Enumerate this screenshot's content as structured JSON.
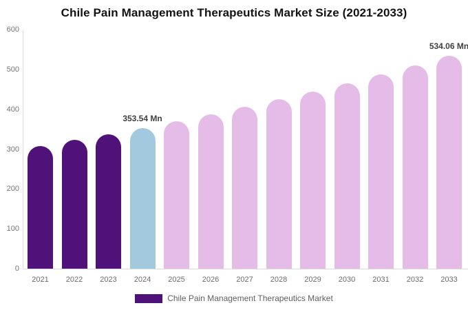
{
  "chart_data": {
    "type": "bar",
    "title": "Chile Pain Management Therapeutics Market Size (2021-2033)",
    "categories": [
      "2021",
      "2022",
      "2023",
      "2024",
      "2025",
      "2026",
      "2027",
      "2028",
      "2029",
      "2030",
      "2031",
      "2032",
      "2033"
    ],
    "values": [
      308.0,
      322.5,
      337.7,
      353.54,
      370.2,
      387.6,
      405.8,
      424.9,
      444.8,
      465.7,
      487.6,
      510.5,
      534.06
    ],
    "unit": "Mn",
    "xlabel": "",
    "ylabel": "",
    "ylim": [
      0,
      600
    ],
    "yticks": [
      0,
      100,
      200,
      300,
      400,
      500,
      600
    ],
    "grid": "off",
    "legend_position": "bottom",
    "bar_colors": [
      "#4F1279",
      "#4F1279",
      "#4F1279",
      "#A3C9DE",
      "#E5BCE7",
      "#E5BCE7",
      "#E5BCE7",
      "#E5BCE7",
      "#E5BCE7",
      "#E5BCE7",
      "#E5BCE7",
      "#E5BCE7",
      "#E5BCE7"
    ],
    "data_labels": [
      {
        "category": "2024",
        "text": "353.54 Mn"
      },
      {
        "category": "2033",
        "text": "534.06 Mn"
      }
    ]
  },
  "legend": {
    "label": "Chile Pain Management Therapeutics Market",
    "swatch_color": "#4F1279"
  },
  "colors": {
    "historical_bar": "#4F1279",
    "base_year_bar": "#A3C9DE",
    "forecast_bar": "#E5BCE7",
    "axis_line": "#DCDCDC",
    "y_tick_text": "#757575",
    "x_tick_text": "#6B6B6B",
    "title_text": "#131313",
    "data_label_text": "#3F3F3F",
    "legend_text": "#606060"
  }
}
